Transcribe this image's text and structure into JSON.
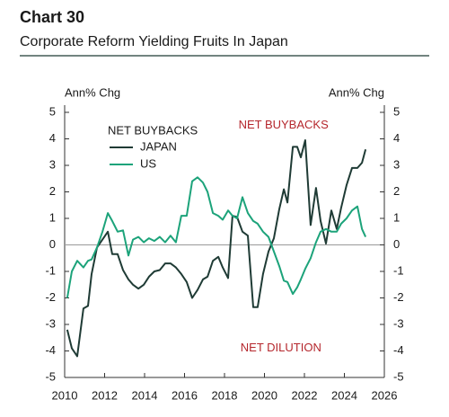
{
  "chart_data": {
    "type": "line",
    "title": "Chart 30",
    "subtitle": "Corporate Reform Yielding Fruits In Japan",
    "y_label": "Ann% Chg",
    "y2_label": "Ann% Chg",
    "legend_title": "NET BUYBACKS",
    "annotations": [
      {
        "text": "NET BUYBACKS",
        "x": 2018.7,
        "y": 4.5,
        "color": "#b5272d"
      },
      {
        "text": "NET DILUTION",
        "x": 2018.8,
        "y": -3.9,
        "color": "#b5272d"
      }
    ],
    "x": [
      2010.13,
      2010.36,
      2010.63,
      2010.94,
      2011.17,
      2011.35,
      2011.62,
      2011.89,
      2012.16,
      2012.38,
      2012.65,
      2012.92,
      2013.19,
      2013.42,
      2013.69,
      2013.96,
      2014.22,
      2014.49,
      2014.76,
      2015.03,
      2015.3,
      2015.57,
      2015.84,
      2016.11,
      2016.38,
      2016.65,
      2016.92,
      2017.15,
      2017.42,
      2017.69,
      2017.91,
      2018.18,
      2018.4,
      2018.63,
      2018.9,
      2019.17,
      2019.44,
      2019.66,
      2019.93,
      2020.2,
      2020.47,
      2020.74,
      2020.97,
      2021.15,
      2021.42,
      2021.64,
      2021.82,
      2022.04,
      2022.31,
      2022.58,
      2022.81,
      2023.08,
      2023.35,
      2023.62,
      2023.84,
      2024.11,
      2024.38,
      2024.65,
      2024.88,
      2025.06
    ],
    "series": [
      {
        "name": "JAPAN",
        "color": "#1f3b35",
        "values": [
          -3.2,
          -3.9,
          -4.2,
          -2.4,
          -2.3,
          -1.1,
          -0.1,
          0.2,
          0.5,
          -0.35,
          -0.35,
          -0.95,
          -1.3,
          -1.5,
          -1.65,
          -1.5,
          -1.2,
          -1.0,
          -0.95,
          -0.7,
          -0.7,
          -0.85,
          -1.1,
          -1.4,
          -2.0,
          -1.7,
          -1.3,
          -1.2,
          -0.6,
          -0.45,
          -0.85,
          -1.25,
          1.1,
          1.05,
          0.5,
          0.35,
          -2.35,
          -2.35,
          -1.1,
          -0.25,
          0.25,
          1.35,
          2.1,
          1.6,
          3.7,
          3.7,
          3.3,
          3.95,
          0.75,
          2.15,
          0.9,
          0.05,
          1.3,
          0.6,
          1.4,
          2.25,
          2.9,
          2.9,
          3.1,
          3.6
        ]
      },
      {
        "name": "US",
        "color": "#1ca37a",
        "values": [
          -2.0,
          -1.0,
          -0.6,
          -0.85,
          -0.6,
          -0.55,
          -0.1,
          0.5,
          1.2,
          0.9,
          0.5,
          0.55,
          -0.4,
          0.2,
          0.3,
          0.1,
          0.25,
          0.15,
          0.3,
          0.1,
          0.35,
          0.1,
          1.1,
          1.1,
          2.4,
          2.55,
          2.35,
          2.0,
          1.2,
          1.1,
          0.95,
          1.3,
          1.1,
          1.0,
          1.8,
          1.2,
          0.9,
          0.8,
          0.5,
          0.3,
          -0.25,
          -0.8,
          -1.35,
          -1.4,
          -1.85,
          -1.6,
          -1.3,
          -0.9,
          -0.5,
          0.1,
          0.5,
          0.6,
          0.5,
          0.5,
          0.8,
          1.0,
          1.3,
          1.45,
          0.6,
          0.3
        ]
      }
    ],
    "xlim": [
      2010,
      2026
    ],
    "xticks": [
      2010,
      2012,
      2014,
      2016,
      2018,
      2020,
      2022,
      2024,
      2026
    ],
    "ylim": [
      -5,
      5
    ],
    "yticks": [
      -5,
      -4,
      -3,
      -2,
      -1,
      0,
      1,
      2,
      3,
      4,
      5
    ],
    "y2lim": [
      -5,
      5
    ],
    "y2ticks": [
      -5,
      -4,
      -3,
      -2,
      -1,
      0,
      1,
      2,
      3,
      4,
      5
    ]
  }
}
